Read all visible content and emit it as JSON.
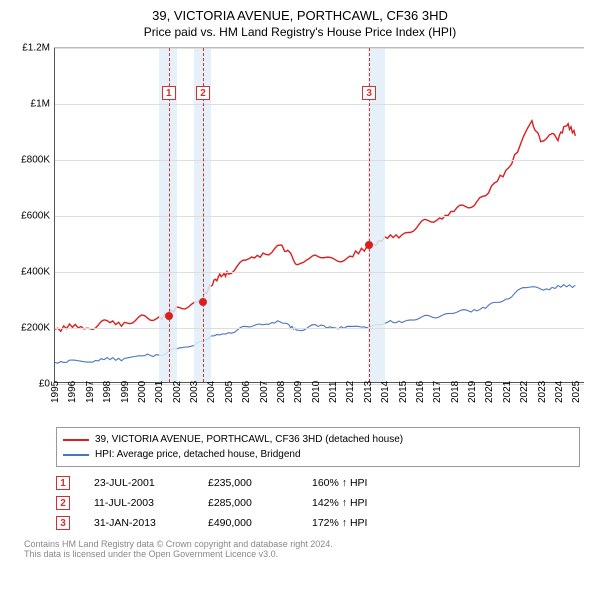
{
  "title": "39, VICTORIA AVENUE, PORTHCAWL, CF36 3HD",
  "subtitle": "Price paid vs. HM Land Registry's House Price Index (HPI)",
  "chart": {
    "type": "line",
    "x_year_min": 1995,
    "x_year_max": 2025.5,
    "ylim": [
      0,
      1200000
    ],
    "yticks": [
      {
        "v": 0,
        "label": "£0"
      },
      {
        "v": 200000,
        "label": "£200K"
      },
      {
        "v": 400000,
        "label": "£400K"
      },
      {
        "v": 600000,
        "label": "£600K"
      },
      {
        "v": 800000,
        "label": "£800K"
      },
      {
        "v": 1000000,
        "label": "£1M"
      },
      {
        "v": 1200000,
        "label": "£1.2M"
      }
    ],
    "xticks": [
      1995,
      1996,
      1997,
      1998,
      1999,
      2000,
      2001,
      2002,
      2003,
      2004,
      2005,
      2006,
      2007,
      2008,
      2009,
      2010,
      2011,
      2012,
      2013,
      2014,
      2015,
      2016,
      2017,
      2018,
      2019,
      2020,
      2021,
      2022,
      2023,
      2024,
      2025
    ],
    "background_color": "#ffffff",
    "grid_color": "#dddddd",
    "shade_color": "#e2edf7",
    "shaded_ranges": [
      [
        2001,
        2002
      ],
      [
        2003,
        2004
      ],
      [
        2013,
        2014
      ]
    ],
    "series": [
      {
        "id": "price_paid",
        "color": "#db1f1f",
        "width": 1.4,
        "points": [
          [
            1995,
            190000
          ],
          [
            1996,
            195000
          ],
          [
            1997,
            200000
          ],
          [
            1998,
            210000
          ],
          [
            1999,
            215000
          ],
          [
            2000,
            225000
          ],
          [
            2001,
            235000
          ],
          [
            2002,
            255000
          ],
          [
            2003,
            285000
          ],
          [
            2003.5,
            300000
          ],
          [
            2004,
            340000
          ],
          [
            2004.5,
            380000
          ],
          [
            2005,
            400000
          ],
          [
            2006,
            430000
          ],
          [
            2007,
            465000
          ],
          [
            2008,
            480000
          ],
          [
            2008.5,
            460000
          ],
          [
            2009,
            430000
          ],
          [
            2010,
            450000
          ],
          [
            2011,
            445000
          ],
          [
            2012,
            440000
          ],
          [
            2013,
            490000
          ],
          [
            2014,
            510000
          ],
          [
            2015,
            530000
          ],
          [
            2016,
            560000
          ],
          [
            2017,
            590000
          ],
          [
            2018,
            610000
          ],
          [
            2019,
            640000
          ],
          [
            2020,
            680000
          ],
          [
            2021,
            760000
          ],
          [
            2022,
            870000
          ],
          [
            2022.5,
            930000
          ],
          [
            2023,
            870000
          ],
          [
            2023.5,
            900000
          ],
          [
            2024,
            870000
          ],
          [
            2024.5,
            920000
          ],
          [
            2025,
            895000
          ]
        ]
      },
      {
        "id": "hpi",
        "color": "#4a74bc",
        "width": 1.1,
        "points": [
          [
            1995,
            70000
          ],
          [
            1996,
            72000
          ],
          [
            1997,
            75000
          ],
          [
            1998,
            80000
          ],
          [
            1999,
            85000
          ],
          [
            2000,
            92000
          ],
          [
            2001,
            100000
          ],
          [
            2002,
            115000
          ],
          [
            2003,
            135000
          ],
          [
            2004,
            160000
          ],
          [
            2005,
            180000
          ],
          [
            2006,
            195000
          ],
          [
            2007,
            210000
          ],
          [
            2008,
            215000
          ],
          [
            2008.5,
            200000
          ],
          [
            2009,
            190000
          ],
          [
            2010,
            200000
          ],
          [
            2011,
            198000
          ],
          [
            2012,
            195000
          ],
          [
            2013,
            200000
          ],
          [
            2014,
            210000
          ],
          [
            2015,
            218000
          ],
          [
            2016,
            228000
          ],
          [
            2017,
            238000
          ],
          [
            2018,
            248000
          ],
          [
            2019,
            258000
          ],
          [
            2020,
            270000
          ],
          [
            2021,
            300000
          ],
          [
            2022,
            340000
          ],
          [
            2023,
            335000
          ],
          [
            2024,
            340000
          ],
          [
            2025,
            345000
          ]
        ]
      }
    ],
    "sale_markers": [
      {
        "n": "1",
        "year": 2001.55,
        "value": 235000,
        "shade_idx": 0
      },
      {
        "n": "2",
        "year": 2003.52,
        "value": 285000,
        "shade_idx": 1
      },
      {
        "n": "3",
        "year": 2013.08,
        "value": 490000,
        "shade_idx": 2
      }
    ]
  },
  "legend": {
    "items": [
      {
        "color": "#db1f1f",
        "label": "39, VICTORIA AVENUE, PORTHCAWL, CF36 3HD (detached house)"
      },
      {
        "color": "#4a74bc",
        "label": "HPI: Average price, detached house, Bridgend"
      }
    ]
  },
  "sales_table": [
    {
      "n": "1",
      "date": "23-JUL-2001",
      "price": "£235,000",
      "hpi": "160% ↑ HPI"
    },
    {
      "n": "2",
      "date": "11-JUL-2003",
      "price": "£285,000",
      "hpi": "142% ↑ HPI"
    },
    {
      "n": "3",
      "date": "31-JAN-2013",
      "price": "£490,000",
      "hpi": "172% ↑ HPI"
    }
  ],
  "footer_l1": "Contains HM Land Registry data © Crown copyright and database right 2024.",
  "footer_l2": "This data is licensed under the Open Government Licence v3.0."
}
